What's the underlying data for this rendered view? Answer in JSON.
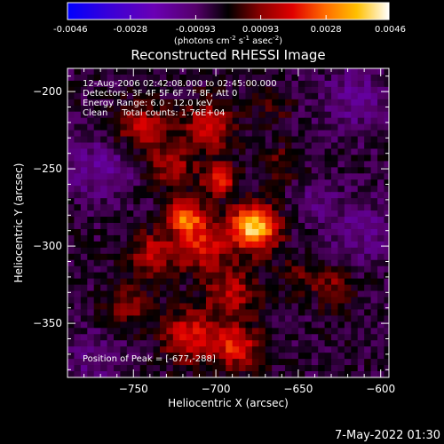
{
  "colorbar": {
    "tick_labels": [
      "-0.0046",
      "-0.0028",
      "-0.00093",
      "0.00093",
      "0.0028",
      "0.0046"
    ],
    "tick_values": [
      -0.0046,
      -0.0028,
      -0.00093,
      0.00093,
      0.0028,
      0.0046
    ],
    "unit_main": "(photons cm",
    "unit_exp1": "-2",
    "unit_mid": " s",
    "unit_exp2": "-1",
    "unit_end": " asec",
    "unit_exp3": "-2",
    "unit_close": ")"
  },
  "annotations": {
    "time": "12-Aug-2006 02:42:08.000 to 02:45:00.000",
    "detectors": "Detectors: 3F 4F 5F 6F 7F 8F, Att 0",
    "energy": "Energy Range: 6.0 - 12.0 keV",
    "clean": "Clean     Total counts: 1.76E+04",
    "peak": "Position of Peak = [-677,-288]"
  },
  "footer_date": "7-May-2022 01:30",
  "colors": {
    "background": "#000000",
    "text": "#ffffff"
  },
  "chart_data": {
    "type": "heatmap",
    "title": "Reconstructed RHESSI Image",
    "xlabel": "Heliocentric X (arcsec)",
    "ylabel": "Heliocentric Y (arcsec)",
    "xlim": [
      -790,
      -595
    ],
    "ylim": [
      -385,
      -185
    ],
    "xticks": [
      -750,
      -700,
      -650,
      -600
    ],
    "xtick_labels": [
      "−750",
      "−700",
      "−650",
      "−600"
    ],
    "yticks": [
      -200,
      -250,
      -300,
      -350
    ],
    "ytick_labels": [
      "−200",
      "−250",
      "−300",
      "−350"
    ],
    "colormap": "ssw-red-temperature",
    "clim": [
      -0.0046,
      0.0046
    ],
    "peak": [
      -677,
      -288
    ],
    "sources": [
      {
        "x": -677,
        "y": -288,
        "amp": 0.0044,
        "sigma": 10
      },
      {
        "x": -718,
        "y": -281,
        "amp": 0.003,
        "sigma": 8
      },
      {
        "x": -698,
        "y": -257,
        "amp": 0.0026,
        "sigma": 7
      },
      {
        "x": -709,
        "y": -300,
        "amp": 0.0022,
        "sigma": 11
      },
      {
        "x": -739,
        "y": -305,
        "amp": 0.0018,
        "sigma": 10
      },
      {
        "x": -690,
        "y": -330,
        "amp": 0.0018,
        "sigma": 11
      },
      {
        "x": -715,
        "y": -358,
        "amp": 0.0022,
        "sigma": 12
      },
      {
        "x": -687,
        "y": -365,
        "amp": 0.0023,
        "sigma": 10
      },
      {
        "x": -745,
        "y": -223,
        "amp": 0.0018,
        "sigma": 11
      },
      {
        "x": -704,
        "y": -222,
        "amp": 0.002,
        "sigma": 11
      },
      {
        "x": -727,
        "y": -248,
        "amp": 0.0017,
        "sigma": 10
      },
      {
        "x": -661,
        "y": -248,
        "amp": 0.001,
        "sigma": 9
      },
      {
        "x": -752,
        "y": -340,
        "amp": 0.0012,
        "sigma": 10
      },
      {
        "x": -628,
        "y": -327,
        "amp": 0.0012,
        "sigma": 9
      },
      {
        "x": -649,
        "y": -318,
        "amp": 0.0008,
        "sigma": 9
      },
      {
        "x": -665,
        "y": -212,
        "amp": 0.0006,
        "sigma": 9
      },
      {
        "x": -770,
        "y": -250,
        "amp": -0.0012,
        "sigma": 14
      },
      {
        "x": -615,
        "y": -205,
        "amp": -0.001,
        "sigma": 16
      },
      {
        "x": -612,
        "y": -290,
        "amp": -0.0009,
        "sigma": 15
      },
      {
        "x": -772,
        "y": -375,
        "amp": -0.0008,
        "sigma": 14
      },
      {
        "x": -640,
        "y": -270,
        "amp": -0.0006,
        "sigma": 11
      }
    ]
  }
}
